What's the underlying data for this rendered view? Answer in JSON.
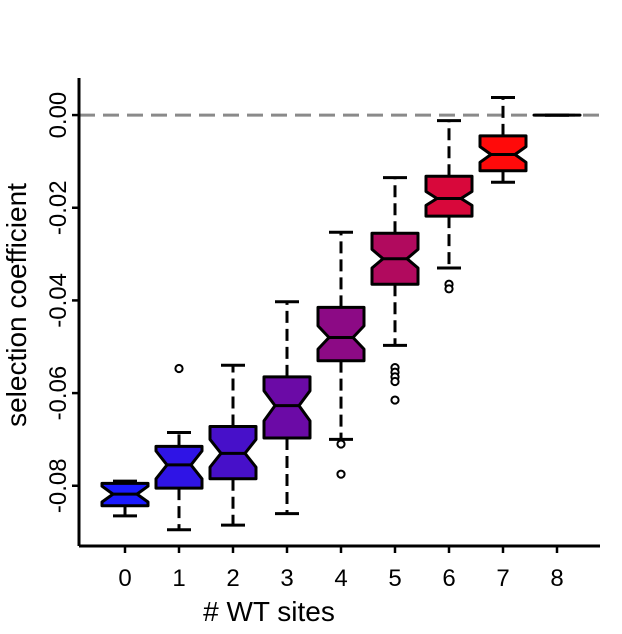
{
  "chart_data": {
    "type": "box",
    "variant": "notched",
    "xlabel": "# WT sites",
    "ylabel": "selection coefficient",
    "categories": [
      "0",
      "1",
      "2",
      "3",
      "4",
      "5",
      "6",
      "7",
      "8"
    ],
    "y_ticks": [
      0.0,
      -0.02,
      -0.04,
      -0.06,
      -0.08
    ],
    "y_tick_labels": [
      "0.00",
      "-0.02",
      "-0.04",
      "-0.06",
      "-0.08"
    ],
    "ylim": [
      -0.093,
      0.008
    ],
    "reference_line": {
      "y": 0.0,
      "style": "dashed",
      "color": "#8a8a8a"
    },
    "grid": false,
    "legend": "none",
    "boxes": [
      {
        "category": "0",
        "whisker_low": -0.0865,
        "q1": -0.0843,
        "median": -0.0818,
        "q3": -0.0795,
        "whisker_high": -0.079,
        "notch_low": -0.0835,
        "notch_high": -0.0801,
        "outliers": [],
        "color": "#1b1bff"
      },
      {
        "category": "1",
        "whisker_low": -0.0895,
        "q1": -0.0805,
        "median": -0.0755,
        "q3": -0.0715,
        "whisker_high": -0.0685,
        "notch_low": -0.0785,
        "notch_high": -0.0725,
        "outliers": [
          -0.0547
        ],
        "color": "#2f14e6"
      },
      {
        "category": "2",
        "whisker_low": -0.0885,
        "q1": -0.0785,
        "median": -0.073,
        "q3": -0.0672,
        "whisker_high": -0.054,
        "notch_low": -0.076,
        "notch_high": -0.07,
        "outliers": [],
        "color": "#4710c9"
      },
      {
        "category": "3",
        "whisker_low": -0.086,
        "q1": -0.0697,
        "median": -0.0627,
        "q3": -0.0565,
        "whisker_high": -0.0403,
        "notch_low": -0.066,
        "notch_high": -0.0595,
        "outliers": [],
        "color": "#6b0aa6"
      },
      {
        "category": "4",
        "whisker_low": -0.07,
        "q1": -0.053,
        "median": -0.048,
        "q3": -0.0415,
        "whisker_high": -0.0253,
        "notch_low": -0.0505,
        "notch_high": -0.0455,
        "outliers": [
          -0.071,
          -0.0775
        ],
        "color": "#8c0a85"
      },
      {
        "category": "5",
        "whisker_low": -0.0497,
        "q1": -0.0365,
        "median": -0.031,
        "q3": -0.0255,
        "whisker_high": -0.0135,
        "notch_low": -0.033,
        "notch_high": -0.029,
        "outliers": [
          -0.0545,
          -0.0555,
          -0.0565,
          -0.0575,
          -0.0615
        ],
        "color": "#b10a5e"
      },
      {
        "category": "6",
        "whisker_low": -0.033,
        "q1": -0.0218,
        "median": -0.018,
        "q3": -0.0132,
        "whisker_high": -0.0012,
        "notch_low": -0.0195,
        "notch_high": -0.0165,
        "outliers": [
          -0.0365,
          -0.0375
        ],
        "color": "#d8083b"
      },
      {
        "category": "7",
        "whisker_low": -0.0145,
        "q1": -0.012,
        "median": -0.0085,
        "q3": -0.0045,
        "whisker_high": 0.0038,
        "notch_low": -0.0102,
        "notch_high": -0.0068,
        "outliers": [],
        "color": "#ff0a0a"
      },
      {
        "category": "8",
        "whisker_low": 0.0,
        "q1": 0.0,
        "median": 0.0,
        "q3": 0.0,
        "whisker_high": 0.0,
        "notch_low": 0.0,
        "notch_high": 0.0,
        "outliers": [],
        "color": "#ff0000"
      }
    ]
  }
}
